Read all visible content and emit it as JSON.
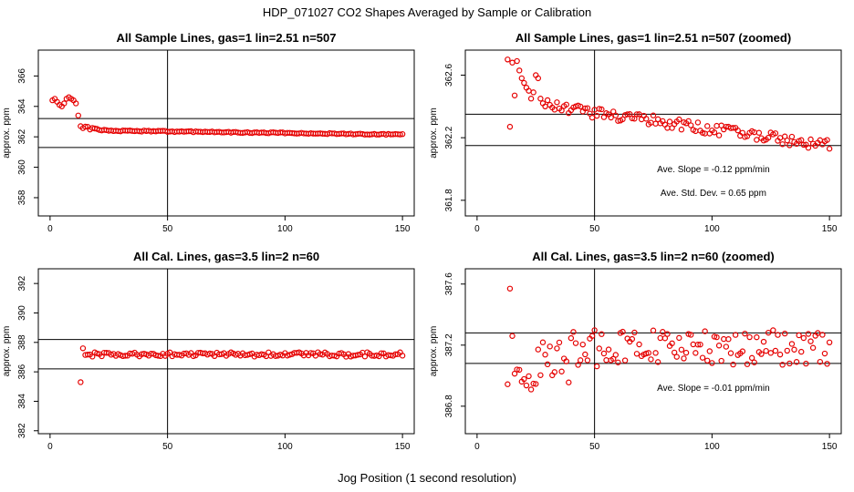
{
  "title": "HDP_071027  CO2 Shapes Averaged by Sample or Calibration",
  "xlabel": "Jog Position (1 second resolution)",
  "colors": {
    "points": "#e60000",
    "lines": "#000000"
  },
  "chart_data": [
    {
      "type": "scatter",
      "title": "All Sample Lines, gas=1 lin=2.51 n=507",
      "xlabel": "",
      "ylabel": "approx. ppm",
      "xlim": [
        -5,
        155
      ],
      "ylim": [
        356.8,
        367.7
      ],
      "xticks": [
        0,
        50,
        100,
        150
      ],
      "yticks": [
        358,
        360,
        362,
        364,
        366
      ],
      "vline": 50,
      "hlines": [
        363.2,
        361.3
      ],
      "series": [
        {
          "profile": "sample",
          "x_start": 1,
          "x_end": 150,
          "scale": 1
        }
      ],
      "annotations": []
    },
    {
      "type": "scatter",
      "title": "All Sample Lines, gas=1 lin=2.51 n=507 (zoomed)",
      "xlabel": "",
      "ylabel": "approx. ppm",
      "xlim": [
        -5,
        155
      ],
      "ylim": [
        361.7,
        362.76
      ],
      "xticks": [
        0,
        50,
        100,
        150
      ],
      "yticks": [
        361.8,
        362.2,
        362.6
      ],
      "vline": 50,
      "hlines": [
        362.35,
        362.15
      ],
      "series": [
        {
          "profile": "sample",
          "x_start": 13,
          "x_end": 150,
          "scale": 1
        }
      ],
      "annotations": [
        "Ave. Slope =  -0.12  ppm/min",
        "Ave. Std. Dev. =  0.65  ppm"
      ]
    },
    {
      "type": "scatter",
      "title": "All Cal. Lines, gas=3.5 lin=2 n=60",
      "xlabel": "",
      "ylabel": "approx. ppm",
      "xlim": [
        -5,
        155
      ],
      "ylim": [
        381.8,
        393.0
      ],
      "xticks": [
        0,
        50,
        100,
        150
      ],
      "yticks": [
        382,
        384,
        386,
        388,
        390,
        392
      ],
      "vline": 50,
      "hlines": [
        388.2,
        386.2
      ],
      "series": [
        {
          "profile": "cal",
          "x_start": 13,
          "x_end": 150,
          "scale": 1
        }
      ],
      "annotations": []
    },
    {
      "type": "scatter",
      "title": "All Cal. Lines, gas=3.5 lin=2 n=60 (zoomed)",
      "xlabel": "",
      "ylabel": "approx. ppm",
      "xlim": [
        -5,
        155
      ],
      "ylim": [
        386.62,
        387.7
      ],
      "xticks": [
        0,
        50,
        100,
        150
      ],
      "yticks": [
        386.8,
        387.2,
        387.6
      ],
      "vline": 50,
      "hlines": [
        387.28,
        387.08
      ],
      "series": [
        {
          "profile": "cal",
          "x_start": 13,
          "x_end": 150,
          "scale": 1
        }
      ],
      "annotations": [
        "Ave. Slope =  -0.01  ppm/min"
      ]
    }
  ]
}
